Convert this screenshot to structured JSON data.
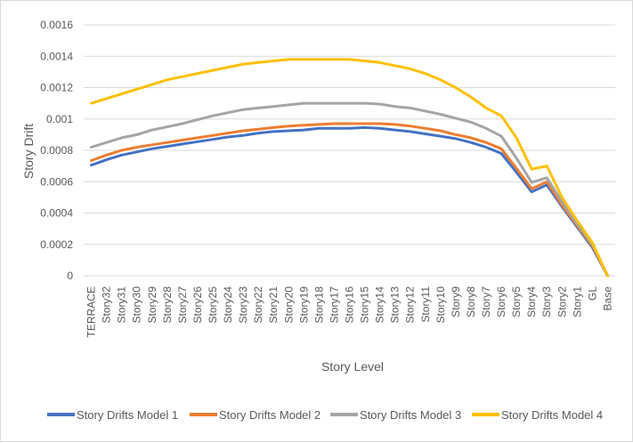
{
  "chart_data": {
    "type": "line",
    "title": "",
    "xlabel": "Story Level",
    "ylabel": "Story Drift",
    "ylim": [
      0,
      0.0016
    ],
    "yticks": [
      "0",
      "0.0002",
      "0.0004",
      "0.0006",
      "0.0008",
      "0.001",
      "0.0012",
      "0.0014",
      "0.0016"
    ],
    "ytick_values": [
      0,
      0.0002,
      0.0004,
      0.0006,
      0.0008,
      0.001,
      0.0012,
      0.0014,
      0.0016
    ],
    "grid": true,
    "legend_position": "bottom",
    "categories": [
      "TERRACE",
      "Story32",
      "Story31",
      "Story30",
      "Story29",
      "Story28",
      "Story27",
      "Story26",
      "Story25",
      "Story24",
      "Story23",
      "Story22",
      "Story21",
      "Story20",
      "Story19",
      "Story18",
      "Story17",
      "Story16",
      "Story15",
      "Story14",
      "Story13",
      "Story12",
      "Story11",
      "Story10",
      "Story9",
      "Story8",
      "Story7",
      "Story6",
      "Story5",
      "Story4",
      "Story3",
      "Story2",
      "Story1",
      "GL",
      "Base"
    ],
    "series": [
      {
        "name": "Story Drifts Model 1",
        "color": "#4472c4",
        "values": [
          0.000705,
          0.00074,
          0.00077,
          0.00079,
          0.00081,
          0.000825,
          0.00084,
          0.000855,
          0.00087,
          0.000885,
          0.000895,
          0.00091,
          0.00092,
          0.000925,
          0.00093,
          0.00094,
          0.00094,
          0.00094,
          0.000945,
          0.00094,
          0.00093,
          0.00092,
          0.000905,
          0.00089,
          0.000875,
          0.00085,
          0.00082,
          0.00078,
          0.00066,
          0.000535,
          0.00058,
          0.00044,
          0.00031,
          0.00018,
          0.0
        ]
      },
      {
        "name": "Story Drifts Model 2",
        "color": "#ed7d31",
        "values": [
          0.000735,
          0.00077,
          0.0008,
          0.00082,
          0.000835,
          0.00085,
          0.000865,
          0.00088,
          0.000895,
          0.00091,
          0.000925,
          0.000935,
          0.000945,
          0.000955,
          0.00096,
          0.000965,
          0.00097,
          0.00097,
          0.00097,
          0.00097,
          0.000965,
          0.000955,
          0.00094,
          0.000925,
          0.0009,
          0.00088,
          0.00085,
          0.00081,
          0.000685,
          0.000555,
          0.0006,
          0.00045,
          0.00032,
          0.00019,
          0.0
        ]
      },
      {
        "name": "Story Drifts Model 3",
        "color": "#a5a5a5",
        "values": [
          0.00082,
          0.00085,
          0.00088,
          0.0009,
          0.00093,
          0.00095,
          0.00097,
          0.000995,
          0.00102,
          0.00104,
          0.00106,
          0.00107,
          0.00108,
          0.00109,
          0.0011,
          0.0011,
          0.0011,
          0.0011,
          0.0011,
          0.001095,
          0.00108,
          0.00107,
          0.00105,
          0.00103,
          0.001005,
          0.00098,
          0.00094,
          0.00089,
          0.00075,
          0.000595,
          0.000625,
          0.00047,
          0.00033,
          0.0002,
          0.0
        ]
      },
      {
        "name": "Story Drifts Model 4",
        "color": "#ffc000",
        "values": [
          0.0011,
          0.00113,
          0.00116,
          0.00119,
          0.00122,
          0.00125,
          0.00127,
          0.00129,
          0.00131,
          0.00133,
          0.00135,
          0.00136,
          0.00137,
          0.00138,
          0.00138,
          0.00138,
          0.00138,
          0.00138,
          0.00137,
          0.00136,
          0.00134,
          0.00132,
          0.00129,
          0.00125,
          0.0012,
          0.00114,
          0.00107,
          0.00102,
          0.00088,
          0.00068,
          0.0007,
          0.0005,
          0.00035,
          0.00021,
          0.0
        ]
      }
    ]
  }
}
